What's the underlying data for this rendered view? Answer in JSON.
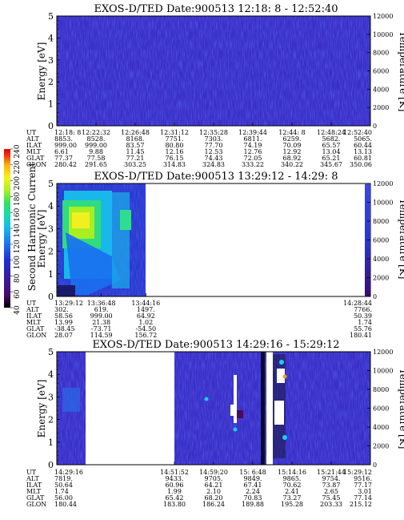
{
  "colorbar": {
    "label": "Second Harmonic Current",
    "ticks": [
      "40",
      "60",
      "80",
      "100",
      "120",
      "140",
      "160",
      "180",
      "200",
      "220",
      "240"
    ],
    "colors": [
      "#000000",
      "#4a0a6e",
      "#3a1a9a",
      "#1f2fd6",
      "#1f6ff2",
      "#19b6ea",
      "#16d9b2",
      "#30e060",
      "#a6f020",
      "#f7f21a",
      "#f7b410",
      "#f23210",
      "#e40000"
    ]
  },
  "panels": [
    {
      "title": "EXOS-D/TED   Date:900513   12:18: 8 - 12:52:40",
      "ylabel": "Energy [eV]",
      "y2label": "Temperature [K]",
      "yticks": [
        "0",
        "1",
        "2",
        "3",
        "4",
        "5"
      ],
      "y2ticks": [
        "0",
        "2000",
        "4000",
        "6000",
        "8000",
        "10000",
        "12000"
      ],
      "info_labels": [
        "UT",
        "ALT",
        "ILAT",
        "MLT",
        "GLAT",
        "GLON"
      ],
      "columns": [
        [
          "12:18: 8",
          "8853.",
          "999.00",
          "6.61",
          "77.37",
          "280.42"
        ],
        [
          "12:22:32",
          "8528.",
          "999.00",
          "9.88",
          "77.58",
          "291.65"
        ],
        [
          "12:26:48",
          "8168.",
          "83.57",
          "11.45",
          "77.21",
          "303.25"
        ],
        [
          "12:31:12",
          "7751.",
          "80.80",
          "12.16",
          "76.15",
          "314.83"
        ],
        [
          "12:35:28",
          "7303.",
          "77.70",
          "12.53",
          "74.43",
          "324.83"
        ],
        [
          "12:39:44",
          "6811.",
          "74.19",
          "12.76",
          "72.05",
          "333.22"
        ],
        [
          "12:44: 8",
          "6259.",
          "70.09",
          "12.92",
          "68.92",
          "340.22"
        ],
        [
          "12:48:24",
          "5682.",
          "65.57",
          "13.04",
          "65.21",
          "345.67"
        ],
        [
          "12:52:40",
          "5065.",
          "60.44",
          "13.13",
          "60.81",
          "350.06"
        ]
      ]
    },
    {
      "title": "EXOS-D/TED   Date:900513   13:29:12 - 14:29: 8",
      "ylabel": "Energy [eV]",
      "y2label": "Temperature [K]",
      "yticks": [
        "0",
        "1",
        "2",
        "3",
        "4",
        "5"
      ],
      "y2ticks": [
        "0",
        "2000",
        "4000",
        "6000",
        "8000",
        "10000",
        "12000"
      ],
      "info_labels": [
        "UT",
        "ALT",
        "ILAT",
        "MLT",
        "GLAT",
        "GLON"
      ],
      "columns": [
        [
          "13:29:12",
          "302.",
          "58.56",
          "13.99",
          "-38.45",
          "28.07"
        ],
        [
          "13:36:48",
          "619.",
          "999.00",
          "21.38",
          "-73.71",
          "114.59"
        ],
        [
          "13:44:16",
          "1497.",
          "64.92",
          "1.02",
          "-54.50",
          "156.72"
        ],
        [
          "14:28:44",
          "7766.",
          "50.39",
          "1.74",
          "55.76",
          "180.41"
        ]
      ]
    },
    {
      "title": "EXOS-D/TED   Date:900513   14:29:16 - 15:29:12",
      "ylabel": "Energy [eV]",
      "y2label": "Temperature [K]",
      "yticks": [
        "0",
        "1",
        "2",
        "3",
        "4",
        "5"
      ],
      "y2ticks": [
        "0",
        "2000",
        "4000",
        "6000",
        "8000",
        "10000",
        "12000"
      ],
      "info_labels": [
        "UT",
        "ALT",
        "ILAT",
        "MLT",
        "GLAT",
        "GLON"
      ],
      "columns": [
        [
          "14:29:16",
          "7819.",
          "50.64",
          "1.74",
          "56.00",
          "180.44"
        ],
        [
          "14:51:52",
          "9433.",
          "60.96",
          "1.99",
          "65.42",
          "183.80"
        ],
        [
          "14:59:20",
          "9705.",
          "64.21",
          "2.10",
          "68.20",
          "186.24"
        ],
        [
          "15: 6:48",
          "9849.",
          "67.41",
          "2.24",
          "70.83",
          "189.88"
        ],
        [
          "15:14:16",
          "9865.",
          "70.62",
          "2.41",
          "73.27",
          "195.28"
        ],
        [
          "15:21:44",
          "9754.",
          "73.87",
          "2.65",
          "75.45",
          "203.33"
        ],
        [
          "15:29:12",
          "9516.",
          "77.17",
          "3.01",
          "77.14",
          "215.12"
        ]
      ]
    }
  ],
  "chart_data": [
    {
      "type": "heatmap",
      "title": "EXOS-D/TED   Date:900513   12:18: 8 - 12:52:40",
      "xlabel": "UT",
      "ylabel": "Energy [eV]",
      "y2label": "Temperature [K]",
      "x": [
        "12:18: 8",
        "12:22:32",
        "12:26:48",
        "12:31:12",
        "12:35:28",
        "12:39:44",
        "12:44: 8",
        "12:48:24",
        "12:52:40"
      ],
      "ylim": [
        0,
        5
      ],
      "y2lim": [
        0,
        12000
      ],
      "coverage": [
        [
          "12:18: 8",
          "12:52:40"
        ]
      ],
      "dominant_level": 100
    },
    {
      "type": "heatmap",
      "title": "EXOS-D/TED   Date:900513   13:29:12 - 14:29: 8",
      "xlabel": "UT",
      "ylabel": "Energy [eV]",
      "y2label": "Temperature [K]",
      "x": [
        "13:29:12",
        "13:36:48",
        "13:44:16",
        "14:28:44"
      ],
      "ylim": [
        0,
        5
      ],
      "y2lim": [
        0,
        12000
      ],
      "coverage": [
        [
          "13:29:12",
          "13:44:16"
        ]
      ],
      "dominant_level": 200
    },
    {
      "type": "heatmap",
      "title": "EXOS-D/TED   Date:900513   14:29:16 - 15:29:12",
      "xlabel": "UT",
      "ylabel": "Energy [eV]",
      "y2label": "Temperature [K]",
      "x": [
        "14:29:16",
        "14:51:52",
        "14:59:20",
        "15: 6:48",
        "15:14:16",
        "15:21:44",
        "15:29:12"
      ],
      "ylim": [
        0,
        5
      ],
      "y2lim": [
        0,
        12000
      ],
      "coverage": [
        [
          "14:29:16",
          "14:33:00"
        ],
        [
          "14:49:00",
          "15:29:12"
        ]
      ],
      "dominant_level": 100
    }
  ]
}
